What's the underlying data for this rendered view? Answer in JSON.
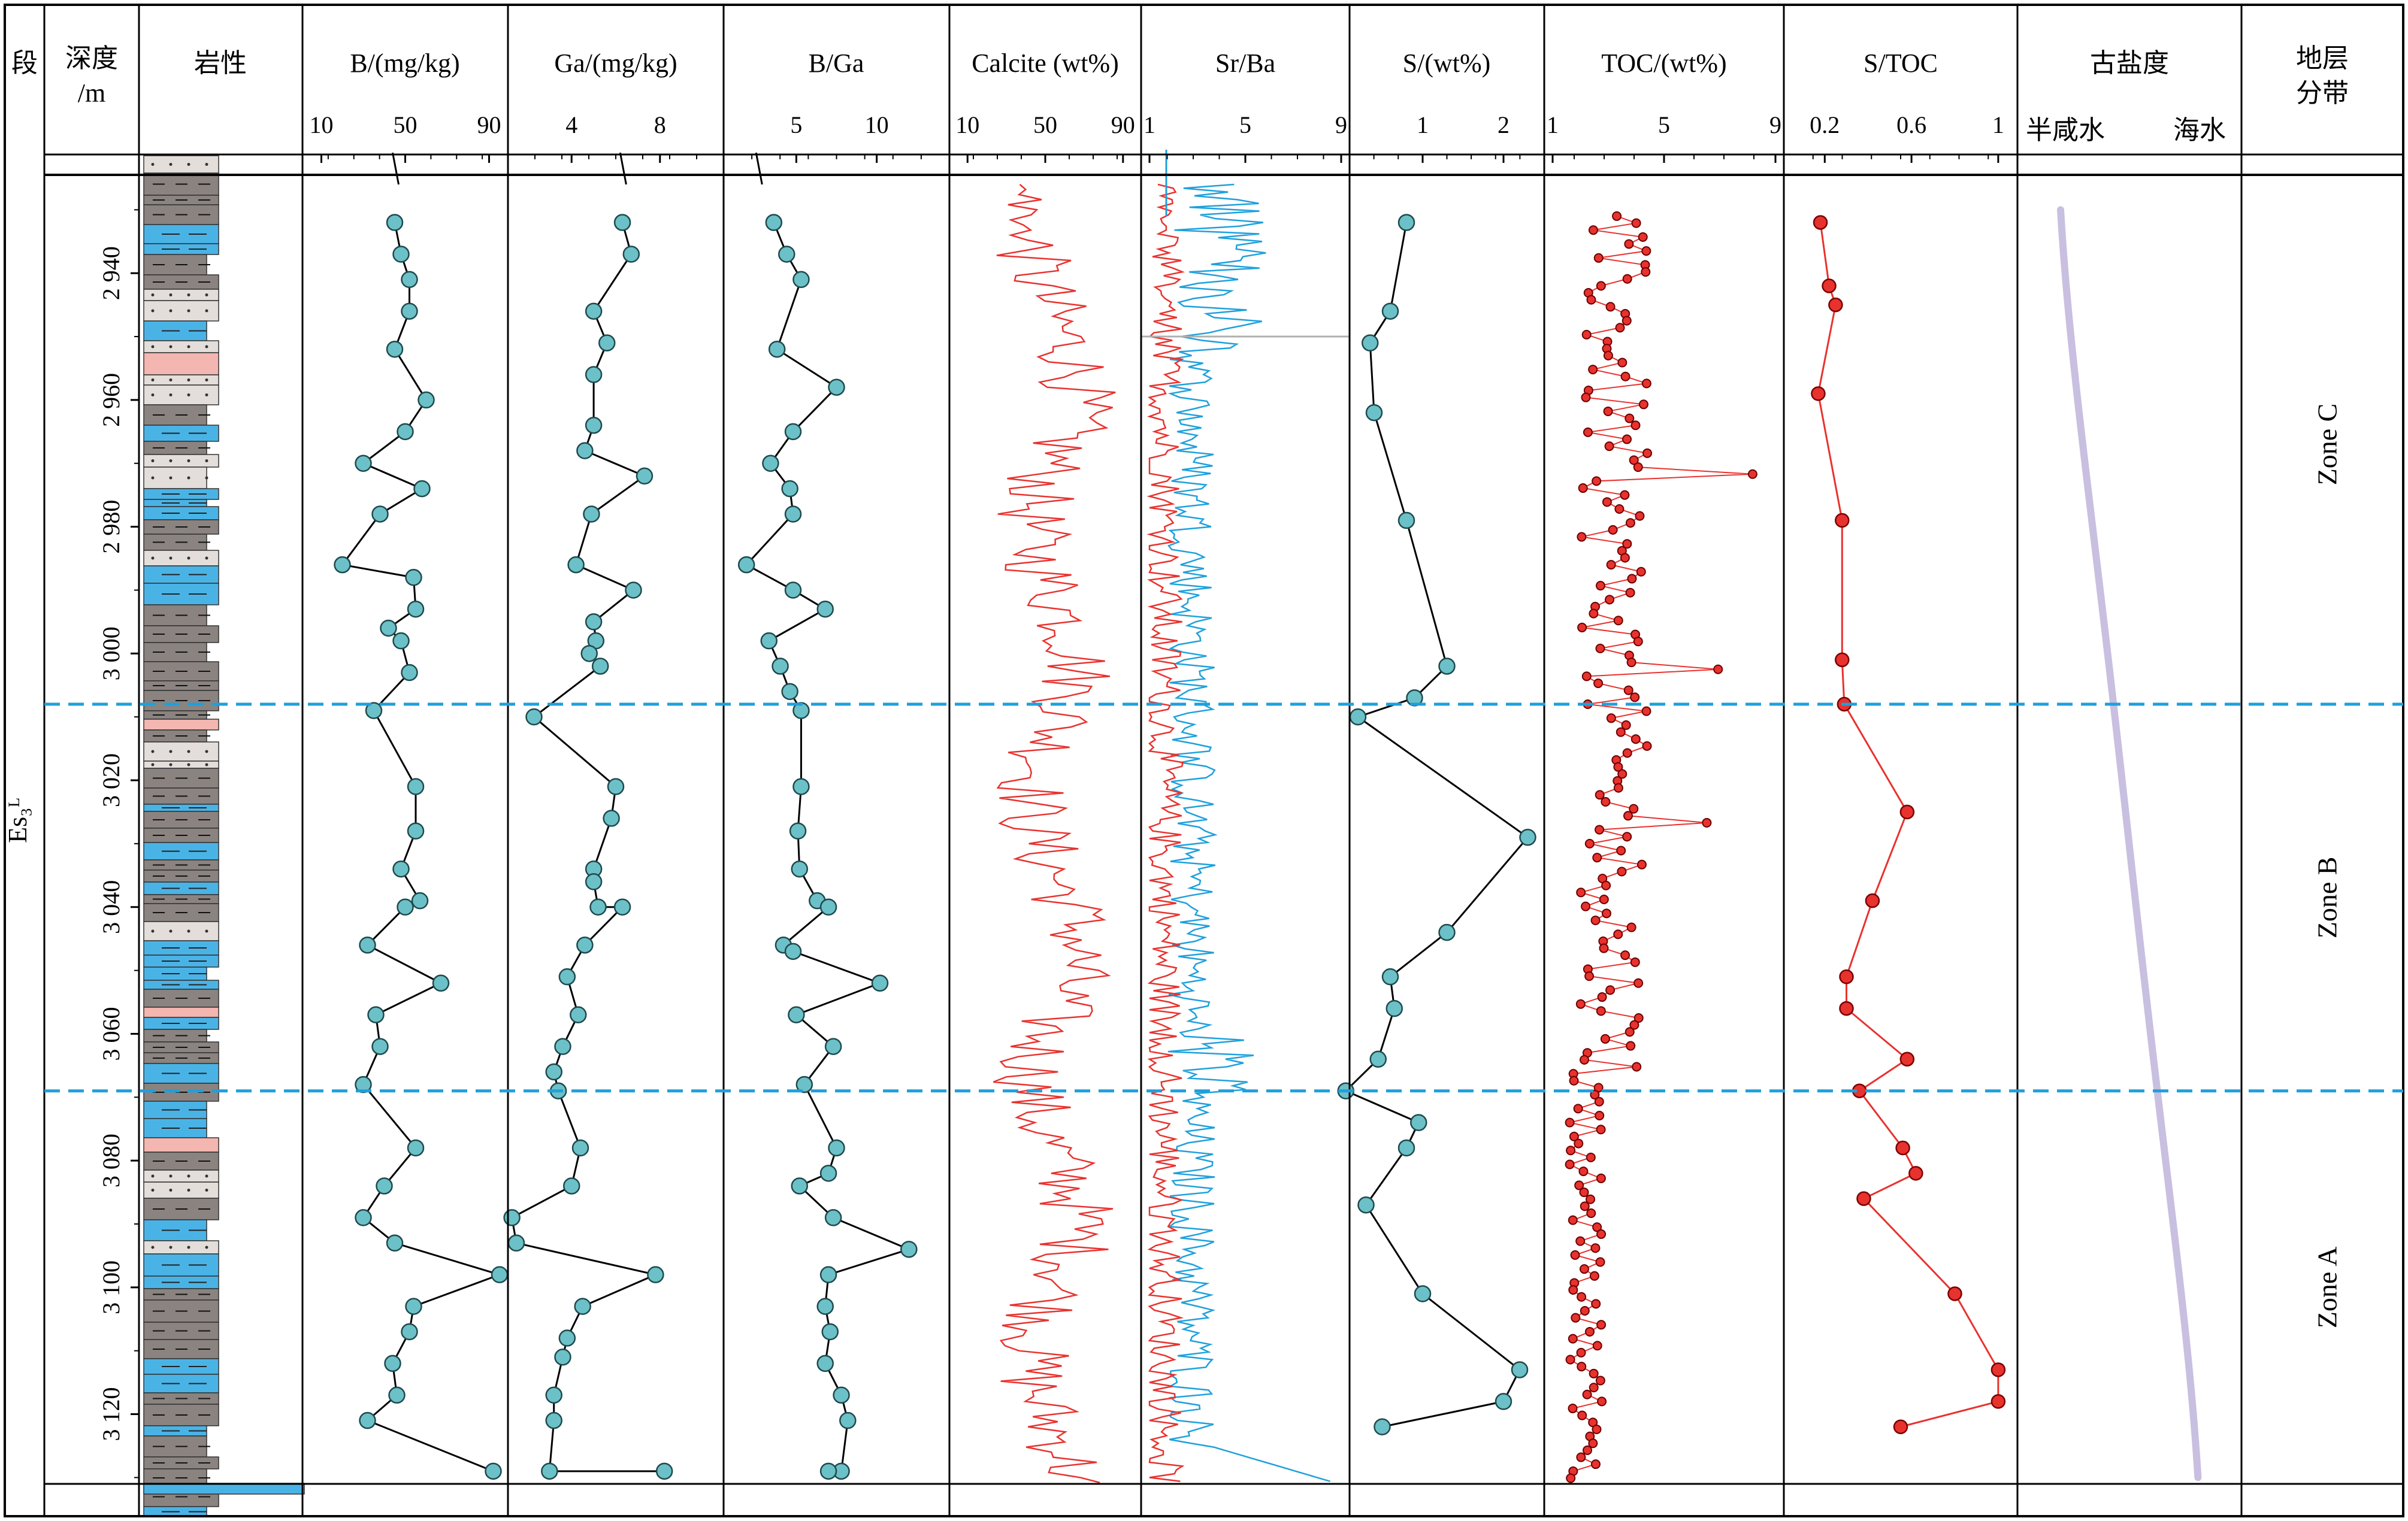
{
  "colors": {
    "cyan": "#6cc1c8",
    "red": "#e8322e",
    "blue": "#1ea0dc",
    "purple": "#c9bfe0",
    "dash": "#1ea0dc",
    "grey": "#8a8380",
    "lightgrey": "#e3deda",
    "pink": "#f4b6b0",
    "lith_blue": "#4ab3e6"
  },
  "headers": {
    "segment": "段",
    "depth": "深度",
    "depth_unit": "/m",
    "lithology": "岩性",
    "b": "B/(mg/kg)",
    "ga": "Ga/(mg/kg)",
    "bga": "B/Ga",
    "calcite": "Calcite (wt%)",
    "srba": "Sr/Ba",
    "s": "S/(wt%)",
    "toc": "TOC/(wt%)",
    "stoc": "S/TOC",
    "sal": "古盐度",
    "sal_low": "半咸水",
    "sal_high": "海水",
    "zone_l1": "地层",
    "zone_l2": "分带"
  },
  "formation": "Es₃ᴸ",
  "zones": [
    "Zone C",
    "Zone B",
    "Zone A"
  ],
  "zone_boundaries": [
    3008,
    3069
  ],
  "depth_ticks": [
    "2 940",
    "2 960",
    "2 980",
    "3 000",
    "3 020",
    "3 040",
    "3 060",
    "3 080",
    "3 100",
    "3 120"
  ],
  "chart_data": {
    "type": "line",
    "depth_range": [
      2926,
      3131
    ],
    "tracks": [
      {
        "key": "b",
        "ticks": [
          "10",
          "50",
          "90"
        ],
        "tick_vals": [
          10,
          50,
          90
        ],
        "range": [
          5,
          95
        ],
        "x": [
          45,
          48,
          52,
          52,
          45,
          60,
          50,
          30,
          58,
          38,
          20,
          54,
          55,
          42,
          48,
          52,
          35,
          55,
          55,
          48,
          57,
          50,
          32,
          67,
          36,
          38,
          30,
          55,
          40,
          30,
          45,
          95,
          54,
          52,
          44,
          46,
          32,
          92
        ],
        "y": [
          2932,
          2937,
          2941,
          2946,
          2952,
          2960,
          2965,
          2970,
          2974,
          2978,
          2986,
          2988,
          2993,
          2996,
          2998,
          3003,
          3009,
          3021,
          3028,
          3034,
          3039,
          3040,
          3046,
          3052,
          3057,
          3062,
          3068,
          3078,
          3084,
          3089,
          3093,
          3098,
          3103,
          3107,
          3112,
          3117,
          3121,
          3129
        ]
      },
      {
        "key": "ga",
        "ticks": [
          "4",
          "8"
        ],
        "tick_vals": [
          4,
          8
        ],
        "range": [
          1.5,
          10.5
        ],
        "x": [
          6.3,
          6.7,
          5.0,
          5.6,
          5.0,
          5.0,
          4.6,
          7.3,
          4.9,
          4.2,
          6.8,
          5.0,
          5.1,
          4.8,
          5.3,
          2.3,
          6.0,
          5.8,
          5.0,
          5.0,
          5.2,
          6.3,
          4.6,
          3.8,
          4.3,
          3.6,
          3.2,
          3.4,
          4.4,
          4.0,
          1.3,
          1.5,
          7.8,
          4.5,
          3.8,
          3.6,
          3.2,
          3.2,
          3.0,
          8.2
        ],
        "y": [
          2932,
          2937,
          2946,
          2951,
          2956,
          2964,
          2968,
          2972,
          2978,
          2986,
          2990,
          2995,
          2998,
          3000,
          3002,
          3010,
          3021,
          3026,
          3034,
          3036,
          3040,
          3040,
          3046,
          3051,
          3057,
          3062,
          3066,
          3069,
          3078,
          3084,
          3089,
          3093,
          3098,
          3103,
          3108,
          3111,
          3117,
          3121,
          3129,
          3129
        ]
      },
      {
        "key": "bga",
        "ticks": [
          "5",
          "10"
        ],
        "tick_vals": [
          5,
          10
        ],
        "range": [
          1,
          14
        ],
        "x": [
          3.6,
          4.4,
          5.3,
          3.8,
          7.5,
          4.8,
          3.4,
          4.6,
          4.8,
          1.9,
          4.8,
          6.8,
          3.3,
          4.0,
          4.6,
          5.3,
          5.3,
          5.1,
          5.2,
          6.3,
          7.0,
          4.2,
          4.8,
          10.2,
          5.0,
          7.3,
          5.5,
          7.5,
          7.0,
          5.2,
          7.3,
          12.0,
          7.0,
          6.8,
          7.1,
          6.8,
          7.8,
          8.2,
          7.8,
          7.0
        ],
        "y": [
          2932,
          2937,
          2941,
          2952,
          2958,
          2965,
          2970,
          2974,
          2978,
          2986,
          2990,
          2993,
          2998,
          3002,
          3006,
          3009,
          3021,
          3028,
          3034,
          3039,
          3040,
          3046,
          3047,
          3052,
          3057,
          3062,
          3068,
          3078,
          3082,
          3084,
          3089,
          3094,
          3098,
          3103,
          3107,
          3112,
          3117,
          3121,
          3129,
          3129
        ]
      },
      {
        "key": "s",
        "ticks": [
          "1",
          "2"
        ],
        "tick_vals": [
          1,
          2
        ],
        "range": [
          0.2,
          2.4
        ],
        "x": [
          0.8,
          0.6,
          0.35,
          0.4,
          0.8,
          1.3,
          0.9,
          0.2,
          2.3,
          1.3,
          0.6,
          0.65,
          0.45,
          0.05,
          0.95,
          0.8,
          0.3,
          1.0,
          2.2,
          2.0,
          0.5
        ],
        "y": [
          2932,
          2946,
          2951,
          2962,
          2979,
          3002,
          3007,
          3010,
          3029,
          3044,
          3051,
          3056,
          3064,
          3069,
          3074,
          3078,
          3087,
          3101,
          3113,
          3118,
          3122
        ]
      },
      {
        "key": "stoc",
        "ticks": [
          "0.2",
          "0.6",
          "1"
        ],
        "tick_vals": [
          0.2,
          0.6,
          1
        ],
        "range": [
          0.05,
          1.05
        ],
        "x": [
          0.18,
          0.22,
          0.25,
          0.17,
          0.28,
          0.28,
          0.29,
          0.58,
          0.42,
          0.3,
          0.3,
          0.58,
          0.36,
          0.56,
          0.62,
          0.38,
          0.8,
          1.0,
          1.0,
          0.55
        ],
        "y": [
          2932,
          2942,
          2945,
          2959,
          2979,
          3001,
          3008,
          3025,
          3039,
          3051,
          3056,
          3064,
          3069,
          3078,
          3082,
          3086,
          3101,
          3113,
          3118,
          3122
        ]
      }
    ],
    "calcite": {
      "ticks": [
        "10",
        "50",
        "90"
      ],
      "tick_vals": [
        10,
        50,
        90
      ],
      "range": [
        5,
        95
      ]
    },
    "srba": {
      "ticks": [
        "1",
        "5",
        "9"
      ],
      "tick_vals": [
        1,
        5,
        9
      ],
      "range": [
        1,
        9
      ]
    },
    "toc": {
      "ticks": [
        "1",
        "5",
        "9"
      ],
      "tick_vals": [
        1,
        5,
        9
      ],
      "range": [
        1,
        9
      ]
    }
  }
}
